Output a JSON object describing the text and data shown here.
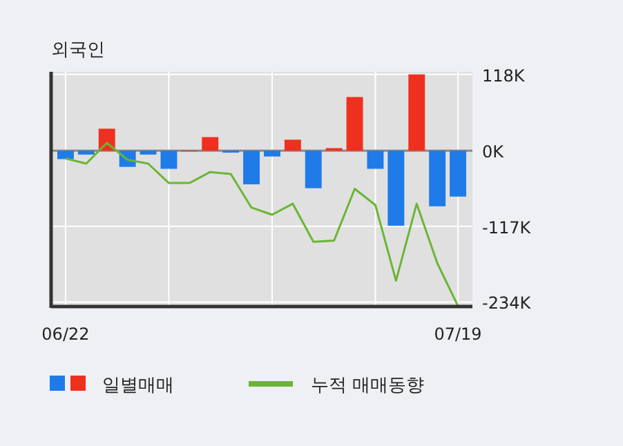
{
  "chart_data": {
    "type": "bar",
    "title": "외국인",
    "categories": [
      "06/22",
      null,
      null,
      null,
      null,
      null,
      null,
      null,
      null,
      null,
      null,
      null,
      null,
      null,
      null,
      null,
      null,
      null,
      null,
      "07/19"
    ],
    "series": [
      {
        "name": "일별매매",
        "values": [
          -13,
          -6,
          34,
          -25,
          -6,
          -28,
          0,
          21,
          -3,
          -52,
          -9,
          17,
          -58,
          4,
          83,
          -28,
          -116,
          118,
          -86,
          -71
        ],
        "colors": [
          "#1f7be8",
          "#1f7be8",
          "#f0301e",
          "#1f7be8",
          "#1f7be8",
          "#1f7be8",
          "#f0301e",
          "#f0301e",
          "#1f7be8",
          "#1f7be8",
          "#1f7be8",
          "#f0301e",
          "#1f7be8",
          "#f0301e",
          "#f0301e",
          "#1f7be8",
          "#1f7be8",
          "#f0301e",
          "#1f7be8",
          "#1f7be8"
        ]
      },
      {
        "type": "line",
        "name": "누적 매매동향",
        "color": "#6ab534",
        "values": [
          -12,
          -20,
          12,
          -14,
          -20,
          -50,
          -50,
          -33,
          -36,
          -88,
          -99,
          -82,
          -141,
          -139,
          -59,
          -84,
          -201,
          -82,
          -174,
          -240
        ]
      }
    ],
    "ylim": [
      -241,
      122
    ],
    "yticks": [
      {
        "value": 118,
        "label": "118K"
      },
      {
        "value": 0,
        "label": "0K"
      },
      {
        "value": -117,
        "label": "-117K"
      },
      {
        "value": -234,
        "label": "-234K"
      }
    ],
    "grid": true,
    "legend": "bottom"
  }
}
